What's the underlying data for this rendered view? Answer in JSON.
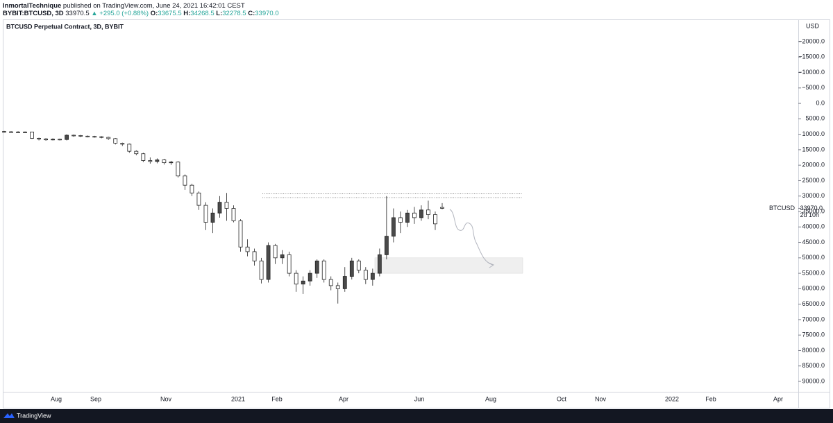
{
  "header": {
    "author": "InmortalTechnique",
    "published": "published on TradingView.com, June 24, 2021 16:42:01 CEST",
    "symbol": "BYBIT:BTCUSD, 3D",
    "price": "33970.5",
    "change": "▲ +295.0 (+0.88%)",
    "o_label": "O:",
    "o": "33675.5",
    "h_label": "H:",
    "h": "34268.5",
    "l_label": "L:",
    "l": "32278.5",
    "c_label": "C:",
    "c": "33970.0"
  },
  "chart_data": {
    "type": "candlestick",
    "title": "BTCUSD Perpetual Contract, 3D, BYBIT",
    "inverted": true,
    "axis_unit": "USD",
    "open": [
      9100,
      9200,
      9250,
      9300,
      9250,
      11300,
      11500,
      11800,
      11600,
      11700,
      10300,
      10400,
      10600,
      10700,
      10800,
      11000,
      11400,
      12900,
      13200,
      15500,
      16300,
      18500,
      18800,
      18300,
      19200,
      19000,
      23500,
      26500,
      29000,
      33000,
      38500,
      35500,
      32000,
      34000,
      38000,
      46500,
      48000,
      51000,
      57000,
      46000,
      50000,
      49000,
      55000,
      58500,
      57500,
      55000,
      51000,
      57000,
      59000,
      60000,
      56000,
      51000,
      54000,
      57000,
      55000,
      49000,
      43000,
      37000,
      38500,
      35500,
      37000,
      34500,
      36000,
      33675.5
    ],
    "high": [
      9500,
      9500,
      9600,
      9500,
      11500,
      12000,
      12100,
      12000,
      12000,
      12000,
      10800,
      10900,
      11000,
      11100,
      11300,
      11800,
      13300,
      13800,
      16000,
      16800,
      19000,
      19500,
      19400,
      19800,
      19900,
      24000,
      28000,
      30000,
      34500,
      41000,
      42000,
      37000,
      38000,
      38500,
      48000,
      49500,
      52500,
      58300,
      58000,
      52000,
      52000,
      56000,
      61000,
      61700,
      59000,
      56500,
      58000,
      60500,
      64800,
      61000,
      57000,
      55000,
      58500,
      59000,
      56000,
      50500,
      45000,
      42000,
      40000,
      39000,
      38000,
      37500,
      41000,
      34268.5
    ],
    "low": [
      8900,
      9000,
      9000,
      9100,
      9200,
      11100,
      11200,
      11300,
      11400,
      10000,
      10100,
      10200,
      10400,
      10500,
      10600,
      10800,
      11200,
      12700,
      13000,
      15200,
      16000,
      17500,
      17800,
      18000,
      18600,
      18700,
      23000,
      26000,
      28500,
      32000,
      34000,
      30000,
      29000,
      33000,
      37500,
      44000,
      47000,
      50000,
      45000,
      45500,
      47500,
      48000,
      54000,
      56000,
      54000,
      50500,
      50500,
      56000,
      58000,
      53000,
      50000,
      50500,
      53000,
      53500,
      47000,
      30000,
      34000,
      35000,
      34500,
      33500,
      33000,
      31500,
      35000,
      32278.5
    ],
    "close": [
      9200,
      9250,
      9300,
      9250,
      11300,
      11500,
      11800,
      11600,
      11700,
      10300,
      10400,
      10600,
      10700,
      10800,
      11000,
      11400,
      12900,
      13200,
      15500,
      16300,
      18500,
      18800,
      18300,
      19200,
      19000,
      23500,
      26500,
      29000,
      33000,
      38500,
      35500,
      32000,
      34000,
      38000,
      46500,
      48000,
      51000,
      57000,
      46000,
      50000,
      49000,
      55000,
      58500,
      57500,
      55000,
      51000,
      57000,
      59000,
      60000,
      56000,
      51000,
      54000,
      57000,
      55000,
      49000,
      43000,
      37000,
      38500,
      35500,
      37000,
      34500,
      36000,
      39000,
      33970
    ],
    "x_labels": [
      "Aug",
      "Sep",
      "Nov",
      "2021",
      "Feb",
      "Apr",
      "Jun",
      "Aug",
      "Oct",
      "Nov",
      "2022",
      "Feb",
      "Apr"
    ],
    "ylim": [
      -26735,
      93367
    ],
    "yticks": [
      {
        "value": -20000,
        "label": "−20000.0"
      },
      {
        "value": -15000,
        "label": "−15000.0"
      },
      {
        "value": -10000,
        "label": "−10000.0"
      },
      {
        "value": -5000,
        "label": "−5000.0"
      },
      {
        "value": 0,
        "label": "0.0"
      },
      {
        "value": 5000,
        "label": "5000.0"
      },
      {
        "value": 10000,
        "label": "10000.0"
      },
      {
        "value": 15000,
        "label": "15000.0"
      },
      {
        "value": 20000,
        "label": "20000.0"
      },
      {
        "value": 25000,
        "label": "25000.0"
      },
      {
        "value": 30000,
        "label": "30000.0"
      },
      {
        "value": 35000,
        "label": "35000.0"
      },
      {
        "value": 40000,
        "label": "40000.0"
      },
      {
        "value": 45000,
        "label": "45000.0"
      },
      {
        "value": 50000,
        "label": "50000.0"
      },
      {
        "value": 55000,
        "label": "55000.0"
      },
      {
        "value": 60000,
        "label": "60000.0"
      },
      {
        "value": 65000,
        "label": "65000.0"
      },
      {
        "value": 70000,
        "label": "70000.0"
      },
      {
        "value": 75000,
        "label": "75000.0"
      },
      {
        "value": 80000,
        "label": "80000.0"
      },
      {
        "value": 85000,
        "label": "85000.0"
      },
      {
        "value": 90000,
        "label": "90000.0"
      }
    ],
    "levels": [
      29300,
      30500
    ],
    "zone": [
      50000,
      55000
    ],
    "last_name": "BTCUSD",
    "last_value": 33970,
    "last_label": "33970.0",
    "countdown": "2d 10h"
  }
}
